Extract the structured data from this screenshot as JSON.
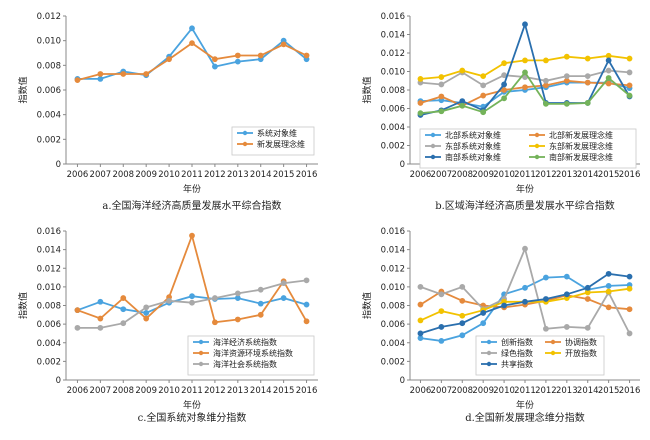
{
  "colors": {
    "blue": "#4aa3df",
    "orange": "#e58a3c",
    "gray": "#a9a9a9",
    "yellow": "#f2c200",
    "darkblue": "#2a6fae",
    "green": "#74b35a"
  },
  "chart_data": [
    {
      "type": "line",
      "caption": "a.全国海洋经济高质量发展水平综合指数",
      "xlabel": "年份",
      "ylabel": "指数值",
      "ylim": [
        0,
        0.012
      ],
      "y_ticks": [
        "0",
        "0.002",
        "0.004",
        "0.006",
        "0.008",
        "0.010",
        "0.012"
      ],
      "categories": [
        "2006",
        "2007",
        "2008",
        "2009",
        "2010",
        "2011",
        "2012",
        "2013",
        "2014",
        "2015",
        "2016"
      ],
      "legend_position": "lower-right",
      "legend_cols": 1,
      "series": [
        {
          "name": "系统对象维",
          "color": "blue",
          "values": [
            0.0069,
            0.0069,
            0.0075,
            0.0072,
            0.0087,
            0.011,
            0.0079,
            0.0083,
            0.0085,
            0.01,
            0.0085
          ]
        },
        {
          "name": "新发展理念维",
          "color": "orange",
          "values": [
            0.0068,
            0.0073,
            0.0073,
            0.0073,
            0.0085,
            0.0098,
            0.0085,
            0.0088,
            0.0088,
            0.0097,
            0.0088
          ]
        }
      ]
    },
    {
      "type": "line",
      "caption": "b.区域海洋经济高质量发展水平综合指数",
      "xlabel": "年份",
      "ylabel": "指数值",
      "ylim": [
        0,
        0.016
      ],
      "y_ticks": [
        "0",
        "0.002",
        "0.004",
        "0.006",
        "0.008",
        "0.010",
        "0.012",
        "0.014",
        "0.016"
      ],
      "categories": [
        "2006",
        "2007",
        "2008",
        "2009",
        "2010",
        "2011",
        "2012",
        "2013",
        "2014",
        "2015",
        "2016"
      ],
      "legend_position": "lower-center",
      "legend_cols": 2,
      "series": [
        {
          "name": "北部系统对象维",
          "color": "blue",
          "values": [
            0.0068,
            0.0069,
            0.0066,
            0.0062,
            0.0078,
            0.008,
            0.0083,
            0.0088,
            0.0088,
            0.0088,
            0.0082
          ]
        },
        {
          "name": "北部新发展理念维",
          "color": "orange",
          "values": [
            0.0066,
            0.0073,
            0.0063,
            0.0074,
            0.008,
            0.0083,
            0.0085,
            0.009,
            0.0088,
            0.0087,
            0.0085
          ]
        },
        {
          "name": "东部系统对象维",
          "color": "gray",
          "values": [
            0.0088,
            0.0086,
            0.0099,
            0.0085,
            0.0096,
            0.0094,
            0.009,
            0.0095,
            0.0095,
            0.0101,
            0.0099
          ]
        },
        {
          "name": "东部新发展理念维",
          "color": "yellow",
          "values": [
            0.0092,
            0.0094,
            0.0101,
            0.0095,
            0.0109,
            0.0112,
            0.0112,
            0.0116,
            0.0114,
            0.0117,
            0.0114
          ]
        },
        {
          "name": "南部系统对象维",
          "color": "darkblue",
          "values": [
            0.0053,
            0.0058,
            0.0068,
            0.0058,
            0.0086,
            0.0151,
            0.0066,
            0.0066,
            0.0066,
            0.0112,
            0.0073
          ]
        },
        {
          "name": "南部新发展理念维",
          "color": "green",
          "values": [
            0.0055,
            0.0057,
            0.0063,
            0.0056,
            0.0071,
            0.0099,
            0.0065,
            0.0065,
            0.0066,
            0.0093,
            0.0074
          ]
        }
      ]
    },
    {
      "type": "line",
      "caption": "c.全国系统对象维分指数",
      "xlabel": "年份",
      "ylabel": "指数值",
      "ylim": [
        0,
        0.016
      ],
      "y_ticks": [
        "0",
        "0.002",
        "0.004",
        "0.006",
        "0.008",
        "0.010",
        "0.012",
        "0.014",
        "0.016"
      ],
      "categories": [
        "2006",
        "2007",
        "2008",
        "2009",
        "2010",
        "2011",
        "2012",
        "2013",
        "2014",
        "2015",
        "2016"
      ],
      "legend_position": "lower-center",
      "legend_cols": 1,
      "series": [
        {
          "name": "海洋经济系统指数",
          "color": "blue",
          "values": [
            0.0075,
            0.0084,
            0.0076,
            0.0072,
            0.0083,
            0.009,
            0.0087,
            0.0088,
            0.0082,
            0.0088,
            0.0081
          ]
        },
        {
          "name": "海洋资源环境系统指数",
          "color": "orange",
          "values": [
            0.0075,
            0.0066,
            0.0088,
            0.0066,
            0.0089,
            0.0155,
            0.0062,
            0.0065,
            0.007,
            0.0106,
            0.0063
          ]
        },
        {
          "name": "海洋社会系统指数",
          "color": "gray",
          "values": [
            0.0056,
            0.0056,
            0.0061,
            0.0078,
            0.0085,
            0.0083,
            0.0088,
            0.0093,
            0.0097,
            0.0104,
            0.0107
          ]
        }
      ]
    },
    {
      "type": "line",
      "caption": "d.全国新发展理念维分指数",
      "xlabel": "年份",
      "ylabel": "指数值",
      "ylim": [
        0,
        0.016
      ],
      "y_ticks": [
        "0",
        "0.002",
        "0.004",
        "0.006",
        "0.008",
        "0.010",
        "0.012",
        "0.014",
        "0.016"
      ],
      "categories": [
        "2006",
        "2007",
        "2008",
        "2009",
        "2010",
        "2011",
        "2012",
        "2013",
        "2014",
        "2015",
        "2016"
      ],
      "legend_position": "lower-center",
      "legend_cols": 2,
      "series": [
        {
          "name": "创新指数",
          "color": "blue",
          "values": [
            0.0045,
            0.0042,
            0.0048,
            0.0061,
            0.0092,
            0.0099,
            0.011,
            0.0111,
            0.0097,
            0.0101,
            0.0102
          ]
        },
        {
          "name": "协调指数",
          "color": "orange",
          "values": [
            0.0081,
            0.0095,
            0.0085,
            0.008,
            0.0078,
            0.0081,
            0.0085,
            0.0091,
            0.0087,
            0.0078,
            0.0076
          ]
        },
        {
          "name": "绿色指数",
          "color": "gray",
          "values": [
            0.01,
            0.0092,
            0.01,
            0.0076,
            0.0087,
            0.0141,
            0.0055,
            0.0057,
            0.0056,
            0.0094,
            0.005
          ]
        },
        {
          "name": "开放指数",
          "color": "yellow",
          "values": [
            0.0064,
            0.0074,
            0.0069,
            0.0075,
            0.0084,
            0.0084,
            0.0084,
            0.0088,
            0.0094,
            0.0095,
            0.0098
          ]
        },
        {
          "name": "共享指数",
          "color": "darkblue",
          "values": [
            0.005,
            0.0057,
            0.0061,
            0.0072,
            0.008,
            0.0084,
            0.0087,
            0.0092,
            0.0099,
            0.0114,
            0.0111
          ]
        }
      ]
    }
  ]
}
